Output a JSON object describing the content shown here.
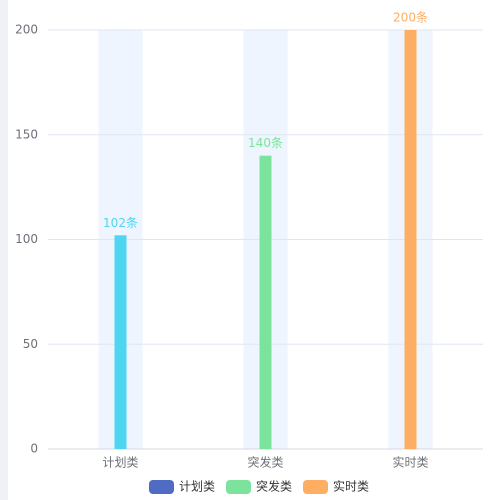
{
  "chart_data": {
    "type": "bar",
    "categories": [
      "计划类",
      "突发类",
      "实时类"
    ],
    "values": [
      102,
      140,
      200
    ],
    "value_labels": [
      "102条",
      "140条",
      "200条"
    ],
    "colors": [
      "#4dd5f1",
      "#7be39b",
      "#fdae62"
    ],
    "legend_colors": [
      "#4f6bc4",
      "#7be39b",
      "#fdae62"
    ],
    "band_color": "#eef5fe",
    "ylim": [
      0,
      200
    ],
    "yticks": [
      0,
      50,
      100,
      150,
      200
    ],
    "grid": true,
    "legend": "bottom"
  }
}
